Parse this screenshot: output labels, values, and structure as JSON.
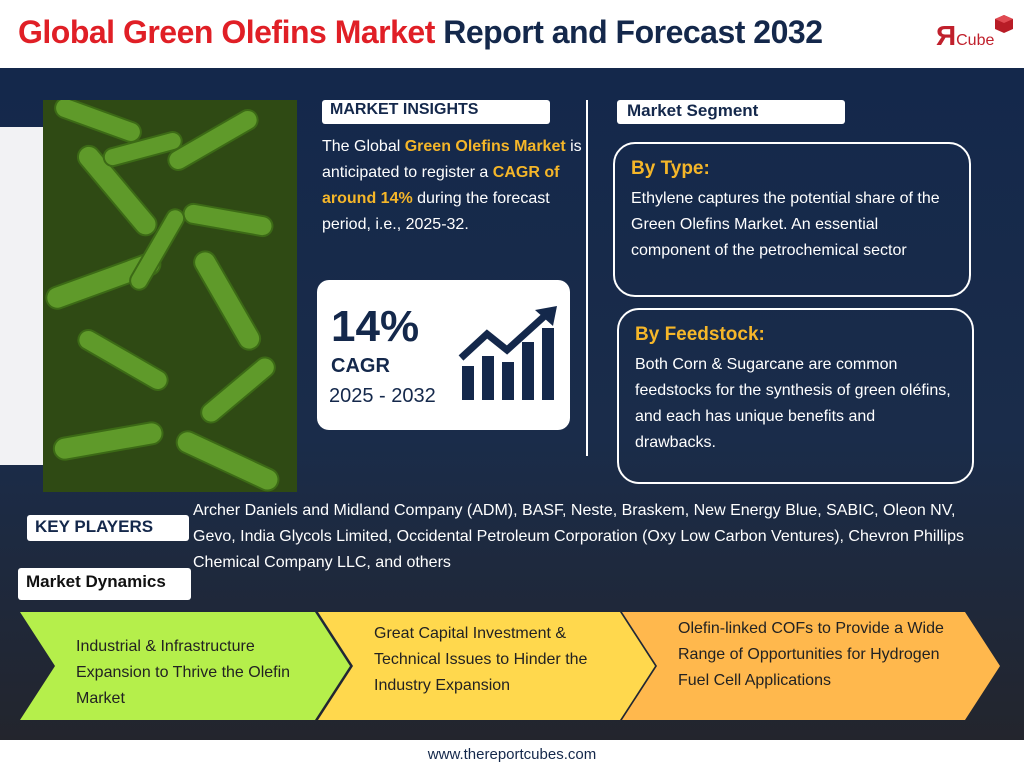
{
  "header": {
    "title_part1": "Global Green Olefins Market",
    "title_part2": "Report and Forecast 2032",
    "logo_mark": "Я",
    "logo_text": "Cube"
  },
  "insights": {
    "label": "MARKET INSIGHTS",
    "text": [
      "The Global ",
      "Green Olefins Market",
      " is anticipated to register a ",
      "CAGR of around 14%",
      " during the forecast period, i.e., 2025-32."
    ]
  },
  "cagr_card": {
    "value": "14%",
    "label": "CAGR",
    "period": "2025 - 2032"
  },
  "segment": {
    "label": "Market Segment",
    "items": [
      {
        "heading": "By Type:",
        "text": "Ethylene captures the potential share of the Green Olefins Market. An essential component of the petrochemical sector"
      },
      {
        "heading": "By Feedstock:",
        "text": "Both Corn & Sugarcane are common feedstocks for the synthesis of green oléfins, and each has unique benefits and drawbacks."
      }
    ]
  },
  "key_players": {
    "label": "KEY PLAYERS",
    "text": "Archer Daniels and Midland Company (ADM), BASF, Neste, Braskem, New Energy Blue, SABIC, Oleon NV, Gevo, India Glycols Limited, Occidental Petroleum Corporation (Oxy Low Carbon Ventures), Chevron Phillips Chemical Company LLC, and others"
  },
  "dynamics": {
    "label": "Market Dynamics",
    "items": [
      "Industrial & Infrastructure Expansion to Thrive the Olefin Market",
      "Great Capital Investment & Technical Issues to Hinder the Industry Expansion",
      "Olefin-linked COFs to Provide a Wide Range of Opportunities for Hydrogen Fuel Cell Applications"
    ]
  },
  "footer": {
    "url": "www.thereportcubes.com"
  }
}
